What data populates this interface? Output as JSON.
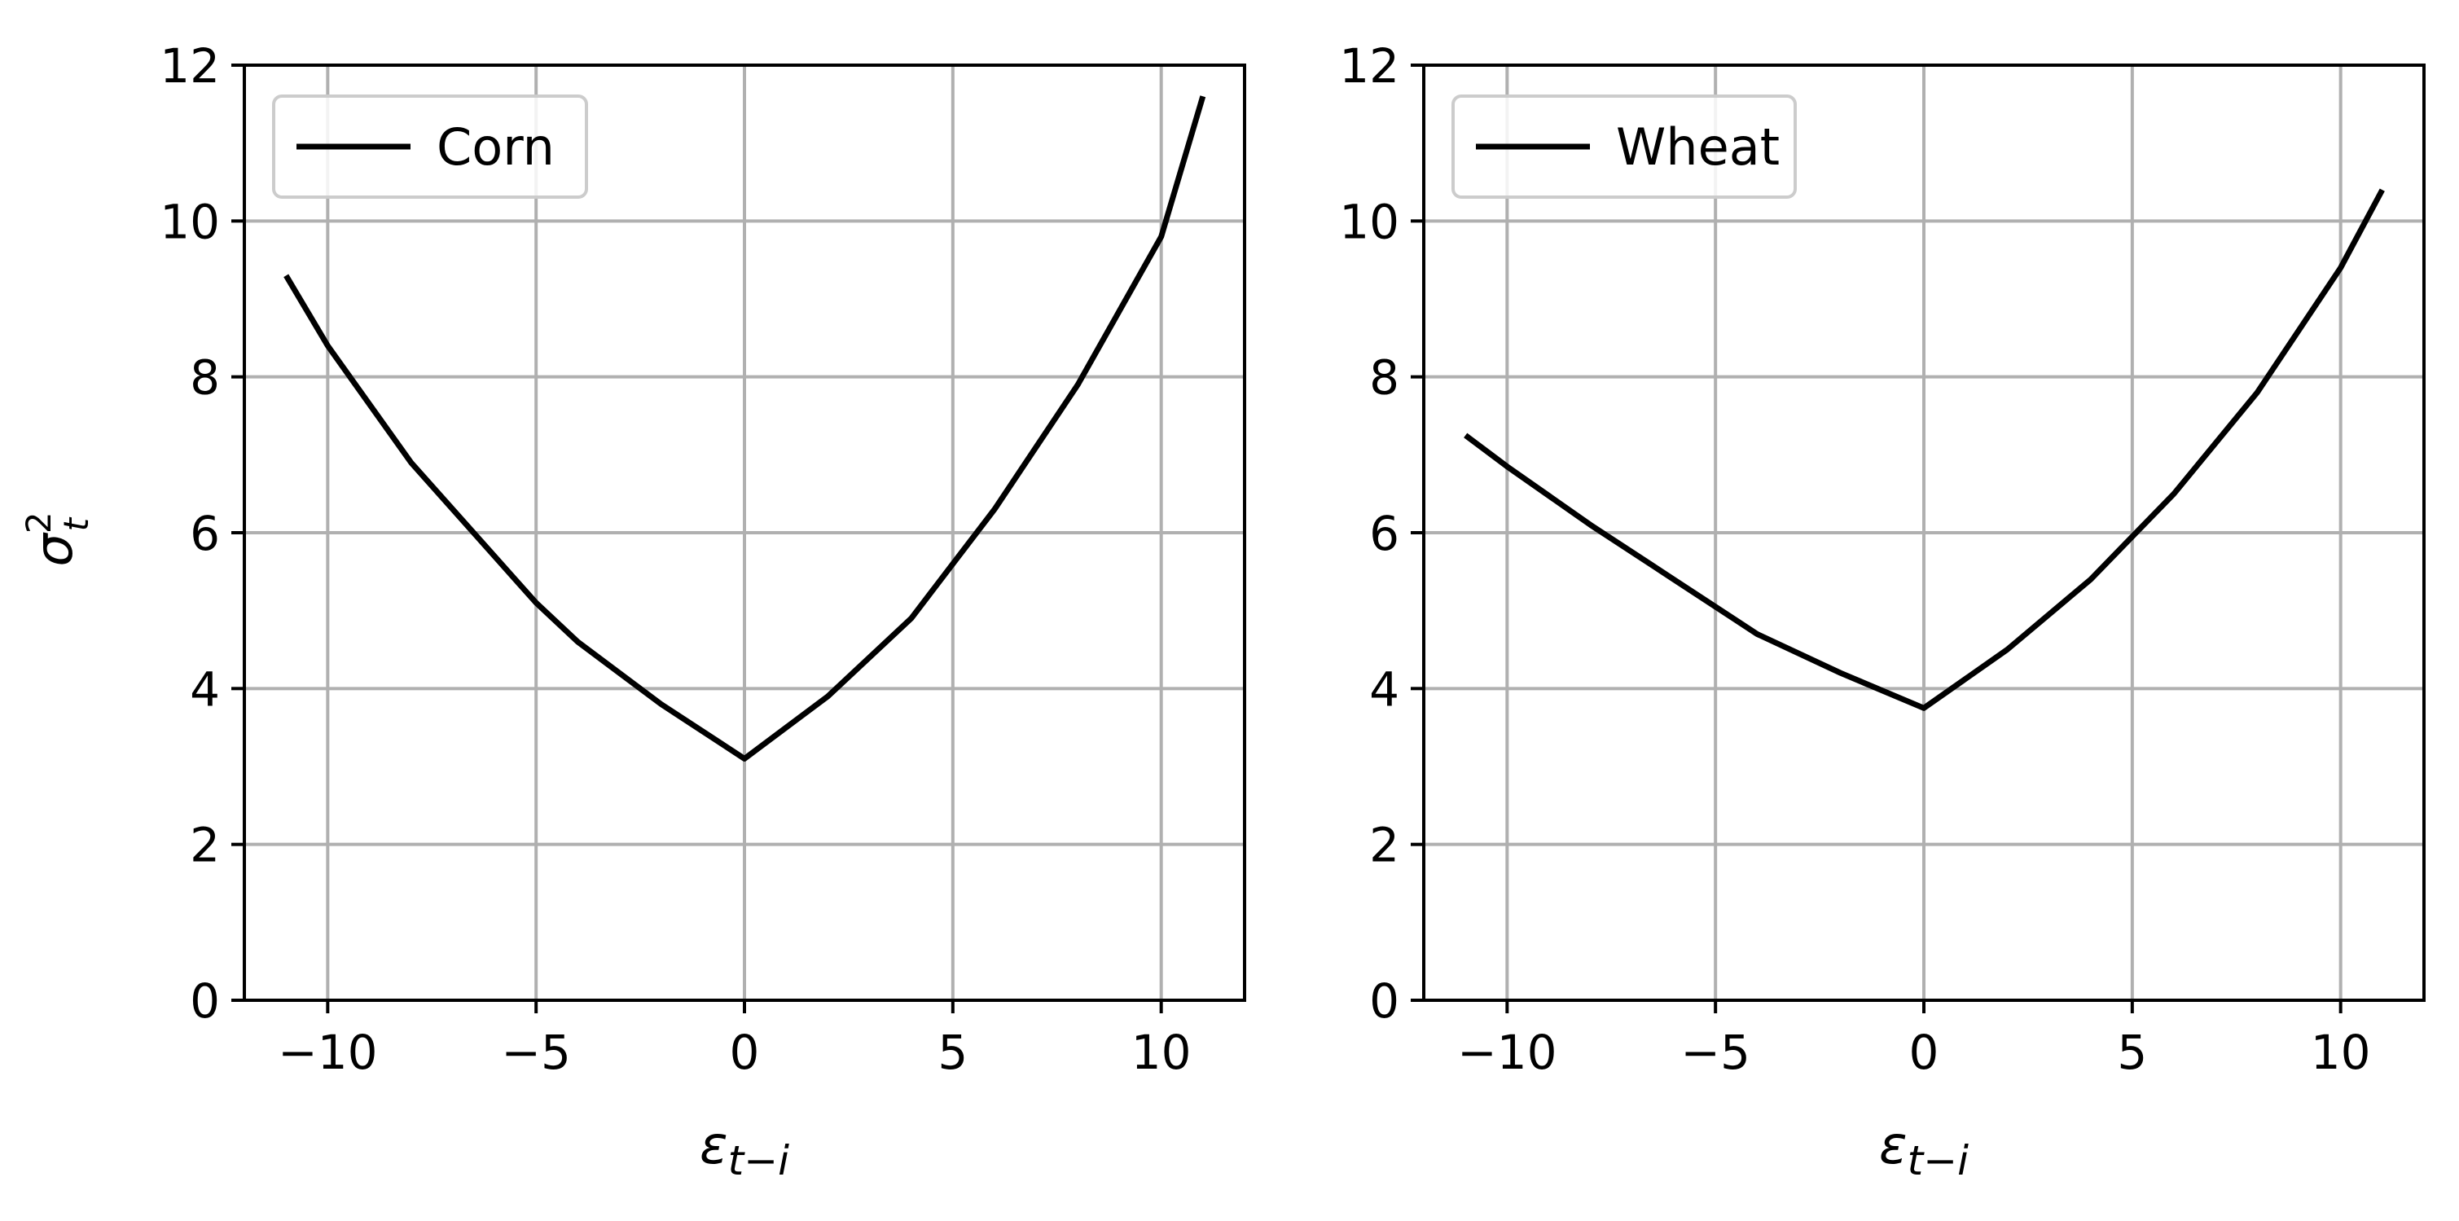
{
  "chart_data": [
    {
      "type": "line",
      "xlabel": "ε_{t−i}",
      "ylabel": "σ²_t",
      "xlim": [
        -12,
        12
      ],
      "ylim": [
        0,
        12
      ],
      "xticks": [
        -10,
        -5,
        0,
        5,
        10
      ],
      "xtick_labels": [
        "−10",
        "−5",
        "0",
        "5",
        "10"
      ],
      "yticks": [
        0,
        2,
        4,
        6,
        8,
        10,
        12
      ],
      "ytick_labels": [
        "0",
        "2",
        "4",
        "6",
        "8",
        "10",
        "12"
      ],
      "grid": true,
      "legend_position": "top-left",
      "series": [
        {
          "name": "Corn",
          "color": "#000000",
          "x": [
            -11,
            -10,
            -8,
            -6,
            -5,
            -4,
            -2,
            0,
            2,
            4,
            5,
            6,
            8,
            10,
            11
          ],
          "y": [
            9.3,
            8.4,
            6.9,
            5.7,
            5.1,
            4.6,
            3.8,
            3.1,
            3.9,
            4.9,
            5.6,
            6.3,
            7.9,
            9.8,
            11.6
          ]
        }
      ]
    },
    {
      "type": "line",
      "xlabel": "ε_{t−i}",
      "ylabel": "",
      "xlim": [
        -12,
        12
      ],
      "ylim": [
        0,
        12
      ],
      "xticks": [
        -10,
        -5,
        0,
        5,
        10
      ],
      "xtick_labels": [
        "−10",
        "−5",
        "0",
        "5",
        "10"
      ],
      "yticks": [
        0,
        2,
        4,
        6,
        8,
        10,
        12
      ],
      "ytick_labels": [
        "0",
        "2",
        "4",
        "6",
        "8",
        "10",
        "12"
      ],
      "grid": true,
      "legend_position": "top-left",
      "series": [
        {
          "name": "Wheat",
          "color": "#000000",
          "x": [
            -11,
            -10,
            -8,
            -6,
            -5,
            -4,
            -2,
            0,
            2,
            4,
            5,
            6,
            8,
            10,
            11
          ],
          "y": [
            7.25,
            6.85,
            6.1,
            5.4,
            5.05,
            4.7,
            4.2,
            3.75,
            4.5,
            5.4,
            5.95,
            6.5,
            7.8,
            9.4,
            10.4
          ]
        }
      ]
    }
  ]
}
